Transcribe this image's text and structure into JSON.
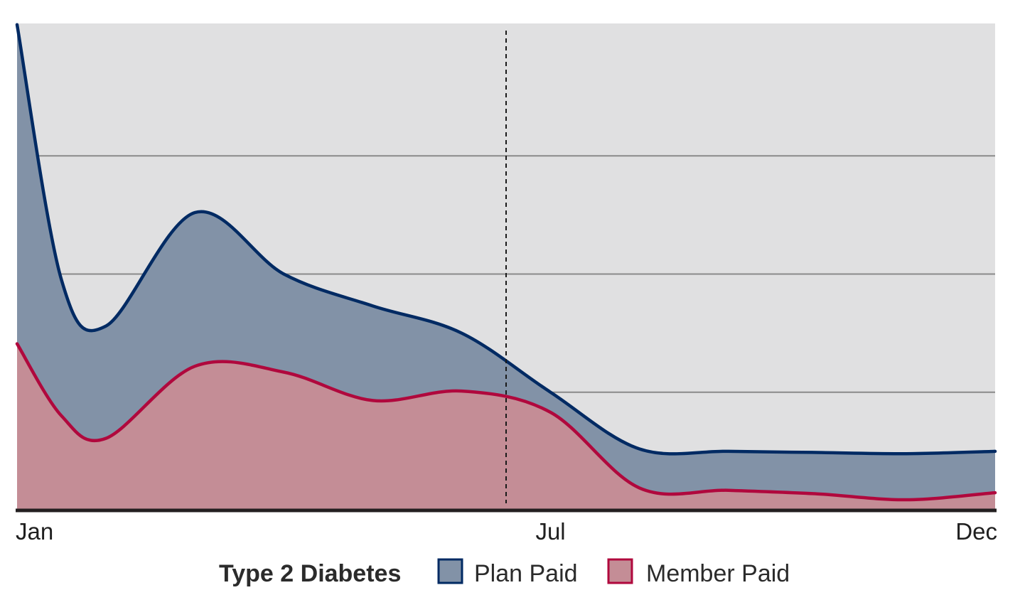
{
  "chart_data": {
    "type": "area",
    "stacked": true,
    "x": [
      0,
      0.5,
      1,
      2,
      3,
      4,
      5,
      6,
      7,
      8,
      9,
      10,
      11
    ],
    "x_tick_labels": [
      {
        "x": 0,
        "label": "Jan"
      },
      {
        "x": 6,
        "label": "Jul"
      },
      {
        "x": 11,
        "label": "Dec"
      }
    ],
    "series": [
      {
        "name": "Member Paid",
        "color": "#c48d96",
        "line_color": "#b0083d",
        "values": [
          7.05,
          4.0,
          3.05,
          6.1,
          5.85,
          4.65,
          5.05,
          4.15,
          0.95,
          0.85,
          0.7,
          0.45,
          0.75
        ]
      },
      {
        "name": "Plan Paid",
        "color": "#8292a7",
        "line_color": "#002a63",
        "values": [
          13.5,
          5.75,
          4.75,
          6.5,
          4.15,
          4.0,
          2.45,
          0.85,
          1.65,
          1.65,
          1.75,
          1.95,
          1.75
        ]
      }
    ],
    "reference_line": {
      "x": 5.5,
      "style": "dashed"
    },
    "ylim": [
      0,
      20.6
    ],
    "y_gridlines": [
      5,
      10,
      15
    ],
    "grid": true,
    "legend": {
      "title": "Type 2 Diabetes",
      "placement": "bottom-center",
      "entries": [
        "Plan Paid",
        "Member Paid"
      ]
    },
    "xlabel": "",
    "ylabel": "",
    "title": ""
  }
}
